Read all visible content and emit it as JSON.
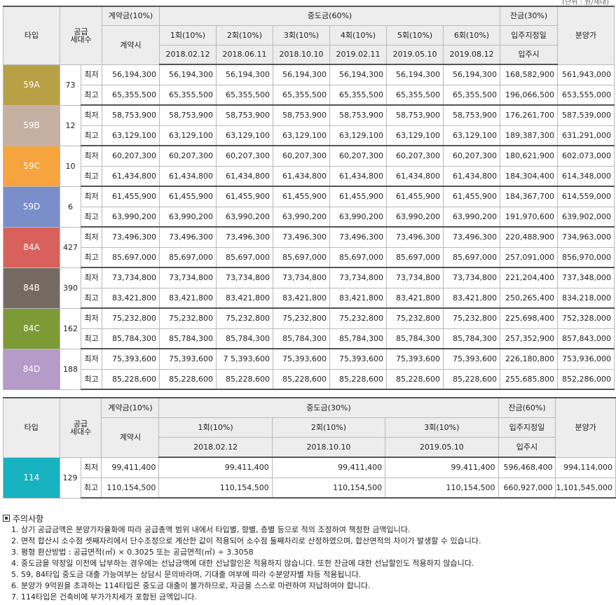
{
  "unit_note": "(단위 : 원/세대)",
  "table1": {
    "header": {
      "type": "타입",
      "supply_line1": "공급",
      "supply_line2": "세대수",
      "deposit": "계약금(10%)",
      "deposit_sub": "계약시",
      "middle": "중도금(60%)",
      "middle_cols": [
        {
          "label": "1회(10%)",
          "date": "2018.02.12"
        },
        {
          "label": "2회(10%)",
          "date": "2018.06.11"
        },
        {
          "label": "3회(10%)",
          "date": "2018.10.10"
        },
        {
          "label": "4회(10%)",
          "date": "2019.02.11"
        },
        {
          "label": "5회(10%)",
          "date": "2019.05.10"
        },
        {
          "label": "6회(10%)",
          "date": "2019.08.12"
        }
      ],
      "balance": "잔금(30%)",
      "balance_sub1": "입주지정일",
      "balance_sub2": "입주시",
      "price": "분양가"
    },
    "rows": [
      {
        "type": "59A",
        "color": "#b7a046",
        "units": "73",
        "low": {
          "label": "최저",
          "deposit": "56,194,300",
          "mids": [
            "56,194,300",
            "56,194,300",
            "56,194,300",
            "56,194,300",
            "56,194,300",
            "56,194,300"
          ],
          "balance": "168,582,900",
          "price": "561,943,000"
        },
        "high": {
          "label": "최고",
          "deposit": "65,355,500",
          "mids": [
            "65,355,500",
            "65,355,500",
            "65,355,500",
            "65,355,500",
            "65,355,500",
            "65,355,500"
          ],
          "balance": "196,066,500",
          "price": "653,555,000"
        }
      },
      {
        "type": "59B",
        "color": "#c5b0a2",
        "units": "12",
        "low": {
          "label": "최저",
          "deposit": "58,753,900",
          "mids": [
            "58,753,900",
            "58,753,900",
            "58,753,900",
            "58,753,900",
            "58,753,900",
            "58,753,900"
          ],
          "balance": "176,261,700",
          "price": "587,539,000"
        },
        "high": {
          "label": "최고",
          "deposit": "63,129,100",
          "mids": [
            "63,129,100",
            "63,129,100",
            "63,129,100",
            "63,129,100",
            "63,129,100",
            "63,129,100"
          ],
          "balance": "189,387,300",
          "price": "631,291,000"
        }
      },
      {
        "type": "59C",
        "color": "#f7a43e",
        "units": "10",
        "low": {
          "label": "최저",
          "deposit": "60,207,300",
          "mids": [
            "60,207,300",
            "60,207,300",
            "60,207,300",
            "60,207,300",
            "60,207,300",
            "60,207,300"
          ],
          "balance": "180,621,900",
          "price": "602,073,000"
        },
        "high": {
          "label": "최고",
          "deposit": "61,434,800",
          "mids": [
            "61,434,800",
            "61,434,800",
            "61,434,800",
            "61,434,800",
            "61,434,800",
            "61,434,800"
          ],
          "balance": "184,304,400",
          "price": "614,348,000"
        }
      },
      {
        "type": "59D",
        "color": "#7a8ec9",
        "units": "6",
        "low": {
          "label": "최저",
          "deposit": "61,455,900",
          "mids": [
            "61,455,900",
            "61,455,900",
            "61,455,900",
            "61,455,900",
            "61,455,900",
            "61,455,900"
          ],
          "balance": "184,367,700",
          "price": "614,559,000"
        },
        "high": {
          "label": "최고",
          "deposit": "63,990,200",
          "mids": [
            "63,990,200",
            "63,990,200",
            "63,990,200",
            "63,990,200",
            "63,990,200",
            "63,990,200"
          ],
          "balance": "191,970,600",
          "price": "639,902,000"
        }
      },
      {
        "type": "84A",
        "color": "#d9615d",
        "units": "427",
        "low": {
          "label": "최저",
          "deposit": "73,496,300",
          "mids": [
            "73,496,300",
            "73,496,300",
            "73,496,300",
            "73,496,300",
            "73,496,300",
            "73,496,300"
          ],
          "balance": "220,488,900",
          "price": "734,963,000"
        },
        "high": {
          "label": "최고",
          "deposit": "85,697,000",
          "mids": [
            "85,697,000",
            "85,697,000",
            "85,697,000",
            "85,697,000",
            "85,697,000",
            "85,697,000"
          ],
          "balance": "257,091,000",
          "price": "856,970,000"
        }
      },
      {
        "type": "84B",
        "color": "#766a60",
        "units": "390",
        "low": {
          "label": "최저",
          "deposit": "73,734,800",
          "mids": [
            "73,734,800",
            "73,734,800",
            "73,734,800",
            "73,734,800",
            "73,734,800",
            "73,734,800"
          ],
          "balance": "221,204,400",
          "price": "737,348,000"
        },
        "high": {
          "label": "최고",
          "deposit": "83,421,800",
          "mids": [
            "83,421,800",
            "83,421,800",
            "83,421,800",
            "83,421,800",
            "83,421,800",
            "83,421,800"
          ],
          "balance": "250,265,400",
          "price": "834,218,000"
        }
      },
      {
        "type": "84C",
        "color": "#7c9a36",
        "units": "162",
        "low": {
          "label": "최저",
          "deposit": "75,232,800",
          "mids": [
            "75,232,800",
            "75,232,800",
            "75,232,800",
            "75,232,800",
            "75,232,800",
            "75,232,800"
          ],
          "balance": "225,698,400",
          "price": "752,328,000"
        },
        "high": {
          "label": "최고",
          "deposit": "85,784,300",
          "mids": [
            "85,784,300",
            "85,784,300",
            "85,784,300",
            "85,784,300",
            "85,784,300",
            "85,784,300"
          ],
          "balance": "257,352,900",
          "price": "857,843,000"
        }
      },
      {
        "type": "84D",
        "color": "#b49bc8",
        "units": "188",
        "low": {
          "label": "최저",
          "deposit": "75,393,600",
          "mids": [
            "75,393,600",
            "7 5,393,600",
            "75,393,600",
            "75,393,600",
            "75,393,600",
            "75,393,600"
          ],
          "balance": "226,180,800",
          "price": "753,936,000"
        },
        "high": {
          "label": "최고",
          "deposit": "85,228,600",
          "mids": [
            "85,228,600",
            "85,228,600",
            "85,228,600",
            "85,228,600",
            "85,228,600",
            "85,228,600"
          ],
          "balance": "255,685,800",
          "price": "852,286,000"
        }
      }
    ]
  },
  "table2": {
    "header": {
      "type": "타입",
      "supply_line1": "공급",
      "supply_line2": "세대수",
      "deposit": "계약금(10%)",
      "deposit_sub": "계약시",
      "middle": "중도금(30%)",
      "middle_cols": [
        {
          "label": "1회(10%)",
          "date": "2018.02.12"
        },
        {
          "label": "2회(10%)",
          "date": "2018.10.10"
        },
        {
          "label": "3회(10%)",
          "date": "2019.05.10"
        }
      ],
      "balance": "잔금(60%)",
      "balance_sub1": "입주지정일",
      "balance_sub2": "입주시",
      "price": "분양가"
    },
    "rows": [
      {
        "type": "114",
        "color": "#17b3c0",
        "units": "129",
        "low": {
          "label": "최저",
          "deposit": "99,411,400",
          "mids": [
            "99,411,400",
            "99,411,400",
            "99,411,400"
          ],
          "balance": "596,468,400",
          "price": "994,114,000"
        },
        "high": {
          "label": "최고",
          "deposit": "110,154,500",
          "mids": [
            "110,154,500",
            "110,154,500",
            "110,154,500"
          ],
          "balance": "660,927,000",
          "price": "1,101,545,000"
        }
      }
    ]
  },
  "notes": {
    "title": "주의사항",
    "items": [
      "1. 상기 공급금액은 분양가자율화에 따라 공급총액 범위 내에서 타입별, 향별, 층별 등으로 적의 조정하여 책정한 금액입니다.",
      "2. 면적 합산시 소수점 셋째자리에서 단수조정으로 계산한 값이 적용되어 소수점 둘째자리로 산정하였으며, 합산면적의 차이가 발생할 수 있습니다.",
      "3. 평형 환산방법 : 공급면적(㎡) × 0.3025 또는 공급면적(㎡) ÷ 3.3058",
      "4. 중도금을 약정일 이전에 납부하는 경우에는 선납금액에 대한 선납할인은 적용하지 않습니다. 또한 잔금에 대한 선납할인도 적용하지 않습니다.",
      "5. 59, 84타입 중도금 대출 가능여부는 상담시 문의바라며, 기대출 여부에 따라 수분양자별 차등 적용됩니다.",
      "6. 분양가 9억원을 초과하는 114타입은 중도금 대출이 불가하므로, 자금을 스스로 마련하여 자납하여야 합니다.",
      "7. 114타입은 건축비에 부가가치세가 포함된 금액입니다."
    ]
  }
}
